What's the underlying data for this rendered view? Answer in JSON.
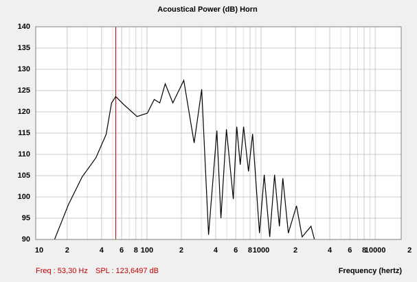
{
  "chart_data": {
    "type": "line",
    "title": "Acoustical Power (dB)    Horn",
    "xlabel": "Frequency (hertz)",
    "xscale": "log",
    "grid": true,
    "color": "#000000",
    "xlim": [
      10.6,
      16900
    ],
    "ylim": [
      90,
      140
    ],
    "xticks": [
      10,
      {
        "value": 20,
        "label": "2"
      },
      {
        "value": 40,
        "label": "4"
      },
      {
        "value": 60,
        "label": "6"
      },
      {
        "value": 80,
        "label": "8"
      },
      100,
      {
        "value": 200,
        "label": "2"
      },
      {
        "value": 400,
        "label": "4"
      },
      {
        "value": 600,
        "label": "6"
      },
      {
        "value": 800,
        "label": "8"
      },
      1000,
      {
        "value": 2000,
        "label": "2"
      },
      {
        "value": 4000,
        "label": "4"
      },
      {
        "value": 6000,
        "label": "6"
      },
      {
        "value": 8000,
        "label": "8"
      },
      10000,
      {
        "value": 20000,
        "label": "2"
      }
    ],
    "xminor": [
      30,
      50,
      70,
      90,
      300,
      500,
      700,
      900,
      3000,
      5000,
      7000,
      9000
    ],
    "yticks": [
      90,
      95,
      100,
      105,
      110,
      115,
      120,
      125,
      130,
      135,
      140
    ],
    "x": [
      15.5,
      20.5,
      27.0,
      35.7,
      43.9,
      49,
      53.3,
      62.1,
      81.9,
      100.8,
      115.8,
      129.5,
      144.6,
      168.5,
      210.3,
      259,
      301.8,
      346.6,
      409.7,
      445,
      497,
      571,
      612,
      657,
      703,
      776,
      843,
      968,
      1066,
      1190,
      1314,
      1448,
      1551,
      1733,
      2045,
      2290,
      2740,
      2935
    ],
    "values": [
      90,
      98.2,
      104.7,
      109.2,
      114.7,
      122.1,
      123.6,
      121.8,
      118.9,
      119.7,
      122.9,
      122.1,
      126.6,
      122.1,
      127.4,
      112.7,
      125.3,
      91.1,
      115.6,
      95,
      115.9,
      99.5,
      116.5,
      107.6,
      116.5,
      106,
      114.8,
      91.5,
      105.2,
      90.6,
      105.2,
      93.1,
      104.4,
      91.5,
      97.9,
      90.6,
      93.1,
      90
    ],
    "cursor": {
      "x": 53.3,
      "color": "#c00000",
      "labels": [
        "Freq : 53,30 Hz",
        "SPL : 123,6497 dB"
      ]
    }
  }
}
